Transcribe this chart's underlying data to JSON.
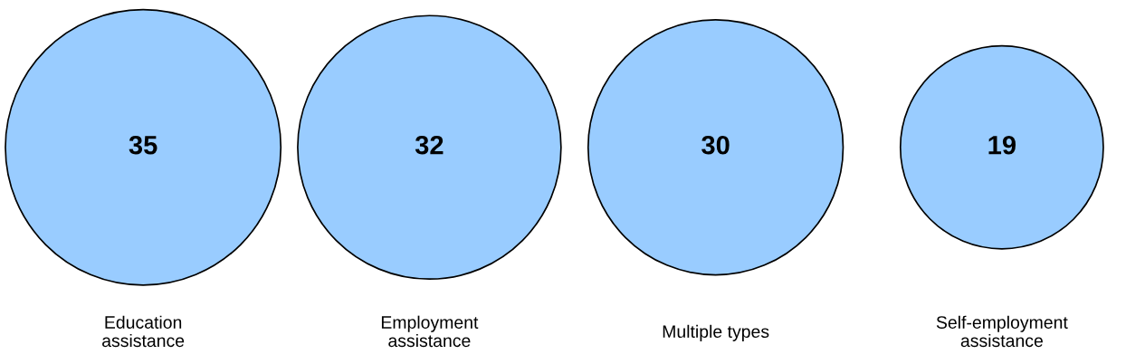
{
  "chart_data": {
    "type": "other",
    "categories": [
      "Education\nassistance",
      "Employment\nassistance",
      "Multiple types",
      "Self-employment\nassistance"
    ],
    "values": [
      35,
      32,
      30,
      19
    ],
    "data_labels": true,
    "color": "#99ccff"
  }
}
